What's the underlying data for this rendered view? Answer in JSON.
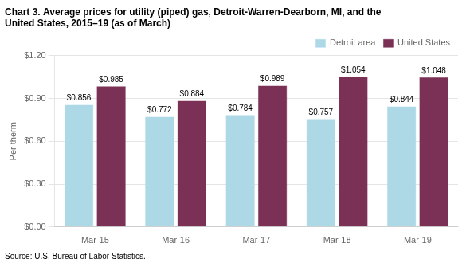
{
  "chart_data": {
    "type": "bar",
    "title": [
      "Chart 3. Average prices for utility (piped) gas, Detroit-Warren-Dearborn, MI, and the",
      "United States, 2015–19 (as of March)"
    ],
    "ylabel": "Per therm",
    "annotations": [
      "Source: U.S. Bureau of Labor Statistics."
    ],
    "categories": [
      "Mar-15",
      "Mar-16",
      "Mar-17",
      "Mar-18",
      "Mar-19"
    ],
    "series": [
      {
        "name": "Detroit area",
        "color": "#ADD8E6",
        "values": [
          0.856,
          0.772,
          0.784,
          0.757,
          0.844
        ],
        "value_labels": [
          "$0.856",
          "$0.772",
          "$0.784",
          "$0.757",
          "$0.844"
        ]
      },
      {
        "name": "United States",
        "color": "#7B3055",
        "values": [
          0.985,
          0.884,
          0.989,
          1.054,
          1.048
        ],
        "value_labels": [
          "$0.985",
          "$0.884",
          "$0.989",
          "$1.054",
          "$1.048"
        ]
      }
    ],
    "ylim": [
      0.0,
      1.2
    ],
    "yticks": [
      {
        "value": 0.0,
        "label": "$0.00"
      },
      {
        "value": 0.3,
        "label": "$0.30"
      },
      {
        "value": 0.6,
        "label": "$0.60"
      },
      {
        "value": 0.9,
        "label": "$0.90"
      },
      {
        "value": 1.2,
        "label": "$1.20"
      }
    ],
    "grid": true,
    "legend": "top",
    "data_labels": true
  }
}
